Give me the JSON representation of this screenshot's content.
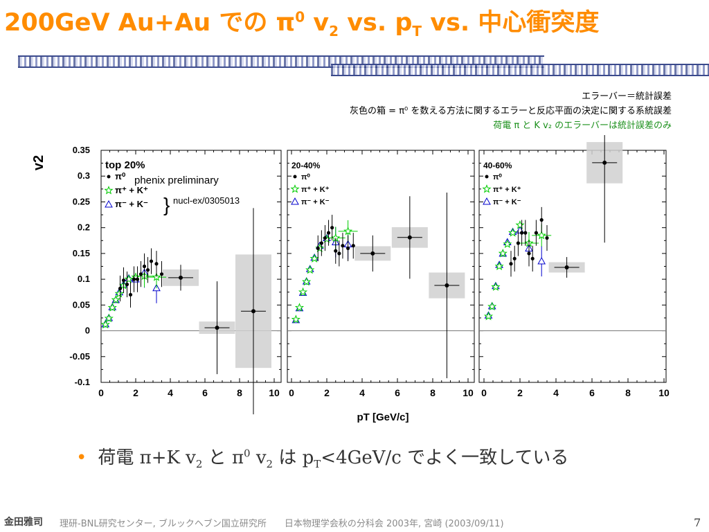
{
  "slide": {
    "title_prefix": "200GeV Au+Au での ",
    "title_pi": "π",
    "title_pi_sup": "0",
    "title_v": " v",
    "title_v_sub": "2",
    "title_vs1": " vs. p",
    "title_pt_sub": "T",
    "title_rest": " vs. 中心衝突度",
    "notes": [
      "エラーバー＝統計誤差",
      "灰色の箱 = π⁰ を数える方法に関するエラーと反応平面の決定に関する系統誤差",
      "荷電 π と K v₂ のエラーバーは統計誤差のみ"
    ],
    "bullet": {
      "symbol": "•",
      "text1": "荷電 ",
      "text2": "π+K v",
      "text2_sub": "2",
      "text3": " と ",
      "text4": "π",
      "text4_sup": "0",
      "text5": " v",
      "text5_sub": "2",
      "text6": " は ",
      "text7": "p",
      "text7_sub": "T",
      "text8": "<4GeV/c",
      "text9": " でよく一致している"
    },
    "footer": {
      "logo": "金田雅司",
      "institute": "理研-BNL研究センター, ブルックヘブン国立研究所",
      "meeting": "日本物理学会秋の分科会 2003年, 宮崎 (2003/09/11)",
      "page": "7"
    }
  },
  "colors": {
    "title": "#ff8c00",
    "pi0": "#000000",
    "charged_pi_k": "#00cc00",
    "neg_pi_k": "#0000cc",
    "syst_box": "#d0d0d0"
  },
  "chart_data": {
    "type": "scatter",
    "ylabel": "v2",
    "xlabel": "pT [GeV/c]",
    "xlim": [
      0,
      10
    ],
    "ylim": [
      -0.1,
      0.35
    ],
    "x_ticks": [
      "0",
      "2",
      "4",
      "6",
      "8",
      "10"
    ],
    "y_ticks": [
      "0.35",
      "0.3",
      "0.25",
      "0.2",
      "0.15",
      "0.1",
      "0.05",
      "0",
      "-0.05",
      "-0.1"
    ],
    "legend_series": [
      "π⁰",
      "π⁺ + K⁺",
      "π⁻ + K⁻"
    ],
    "annotation_1": "phenix preliminary",
    "annotation_2": "nucl-ex/0305013",
    "panels": [
      {
        "label": "top 20%",
        "pi0_highpt": [
          {
            "x": 4.6,
            "y": 0.103,
            "err": 0.025,
            "sys": 0.016
          },
          {
            "x": 6.7,
            "y": 0.006,
            "err": 0.09,
            "sys": 0.012
          },
          {
            "x": 8.8,
            "y": 0.038,
            "err": 0.2,
            "sys": 0.11
          }
        ],
        "pi0_lowpt": [
          {
            "x": 1.1,
            "y": 0.082
          },
          {
            "x": 1.3,
            "y": 0.098
          },
          {
            "x": 1.5,
            "y": 0.09
          },
          {
            "x": 1.7,
            "y": 0.07
          },
          {
            "x": 1.9,
            "y": 0.1
          },
          {
            "x": 2.1,
            "y": 0.1
          },
          {
            "x": 2.3,
            "y": 0.11
          },
          {
            "x": 2.5,
            "y": 0.125
          },
          {
            "x": 2.7,
            "y": 0.118
          },
          {
            "x": 2.9,
            "y": 0.135
          },
          {
            "x": 3.2,
            "y": 0.13
          },
          {
            "x": 3.5,
            "y": 0.11
          }
        ],
        "pipk_pos": [
          {
            "x": 0.25,
            "y": 0.012
          },
          {
            "x": 0.45,
            "y": 0.024
          },
          {
            "x": 0.65,
            "y": 0.045
          },
          {
            "x": 0.85,
            "y": 0.06
          },
          {
            "x": 1.05,
            "y": 0.072
          },
          {
            "x": 1.3,
            "y": 0.088
          },
          {
            "x": 1.6,
            "y": 0.1
          },
          {
            "x": 2.0,
            "y": 0.104
          },
          {
            "x": 2.5,
            "y": 0.106
          },
          {
            "x": 3.2,
            "y": 0.104
          }
        ],
        "pimk_neg": [
          {
            "x": 0.25,
            "y": 0.013
          },
          {
            "x": 0.45,
            "y": 0.025
          },
          {
            "x": 0.65,
            "y": 0.046
          },
          {
            "x": 0.85,
            "y": 0.06
          },
          {
            "x": 1.05,
            "y": 0.075
          },
          {
            "x": 1.3,
            "y": 0.09
          },
          {
            "x": 1.6,
            "y": 0.102
          },
          {
            "x": 2.0,
            "y": 0.1
          },
          {
            "x": 2.5,
            "y": 0.113
          },
          {
            "x": 3.2,
            "y": 0.083
          }
        ]
      },
      {
        "label": "20-40%",
        "pi0_highpt": [
          {
            "x": 4.6,
            "y": 0.15,
            "err": 0.035,
            "sys": 0.014
          },
          {
            "x": 6.7,
            "y": 0.181,
            "err": 0.08,
            "sys": 0.02
          },
          {
            "x": 8.8,
            "y": 0.088,
            "err": 0.18,
            "sys": 0.025
          }
        ],
        "pi0_lowpt": [
          {
            "x": 1.5,
            "y": 0.16
          },
          {
            "x": 1.7,
            "y": 0.17
          },
          {
            "x": 1.9,
            "y": 0.18
          },
          {
            "x": 2.1,
            "y": 0.19
          },
          {
            "x": 2.3,
            "y": 0.2
          },
          {
            "x": 2.5,
            "y": 0.155
          },
          {
            "x": 2.7,
            "y": 0.15
          },
          {
            "x": 2.9,
            "y": 0.165
          },
          {
            "x": 3.2,
            "y": 0.16
          },
          {
            "x": 3.5,
            "y": 0.165
          }
        ],
        "pipk_pos": [
          {
            "x": 0.25,
            "y": 0.022
          },
          {
            "x": 0.45,
            "y": 0.045
          },
          {
            "x": 0.65,
            "y": 0.075
          },
          {
            "x": 0.85,
            "y": 0.095
          },
          {
            "x": 1.05,
            "y": 0.118
          },
          {
            "x": 1.3,
            "y": 0.14
          },
          {
            "x": 1.6,
            "y": 0.16
          },
          {
            "x": 2.0,
            "y": 0.178
          },
          {
            "x": 2.5,
            "y": 0.18
          },
          {
            "x": 3.2,
            "y": 0.193
          }
        ],
        "pimk_neg": [
          {
            "x": 0.25,
            "y": 0.021
          },
          {
            "x": 0.45,
            "y": 0.044
          },
          {
            "x": 0.65,
            "y": 0.074
          },
          {
            "x": 0.85,
            "y": 0.096
          },
          {
            "x": 1.05,
            "y": 0.12
          },
          {
            "x": 1.3,
            "y": 0.142
          },
          {
            "x": 1.6,
            "y": 0.165
          },
          {
            "x": 2.0,
            "y": 0.18
          },
          {
            "x": 2.5,
            "y": 0.172
          },
          {
            "x": 3.2,
            "y": 0.168
          }
        ]
      },
      {
        "label": "40-60%",
        "pi0_highpt": [
          {
            "x": 4.6,
            "y": 0.123,
            "err": 0.02,
            "sys": 0.01
          },
          {
            "x": 6.7,
            "y": 0.326,
            "err": 0.155,
            "sys": 0.04
          }
        ],
        "pi0_lowpt": [
          {
            "x": 1.5,
            "y": 0.13
          },
          {
            "x": 1.7,
            "y": 0.14
          },
          {
            "x": 1.9,
            "y": 0.17
          },
          {
            "x": 2.1,
            "y": 0.19
          },
          {
            "x": 2.3,
            "y": 0.19
          },
          {
            "x": 2.5,
            "y": 0.15
          },
          {
            "x": 2.7,
            "y": 0.14
          },
          {
            "x": 2.9,
            "y": 0.19
          },
          {
            "x": 3.2,
            "y": 0.215
          },
          {
            "x": 3.5,
            "y": 0.18
          }
        ],
        "pipk_pos": [
          {
            "x": 0.25,
            "y": 0.028
          },
          {
            "x": 0.45,
            "y": 0.047
          },
          {
            "x": 0.65,
            "y": 0.085
          },
          {
            "x": 0.85,
            "y": 0.125
          },
          {
            "x": 1.05,
            "y": 0.15
          },
          {
            "x": 1.3,
            "y": 0.168
          },
          {
            "x": 1.6,
            "y": 0.19
          },
          {
            "x": 2.0,
            "y": 0.205
          },
          {
            "x": 2.5,
            "y": 0.17
          },
          {
            "x": 3.2,
            "y": 0.185
          }
        ],
        "pimk_neg": [
          {
            "x": 0.25,
            "y": 0.03
          },
          {
            "x": 0.45,
            "y": 0.048
          },
          {
            "x": 0.65,
            "y": 0.087
          },
          {
            "x": 0.85,
            "y": 0.128
          },
          {
            "x": 1.05,
            "y": 0.15
          },
          {
            "x": 1.3,
            "y": 0.172
          },
          {
            "x": 1.6,
            "y": 0.192
          },
          {
            "x": 2.0,
            "y": 0.195
          },
          {
            "x": 2.5,
            "y": 0.16
          },
          {
            "x": 3.2,
            "y": 0.135
          }
        ]
      }
    ]
  }
}
